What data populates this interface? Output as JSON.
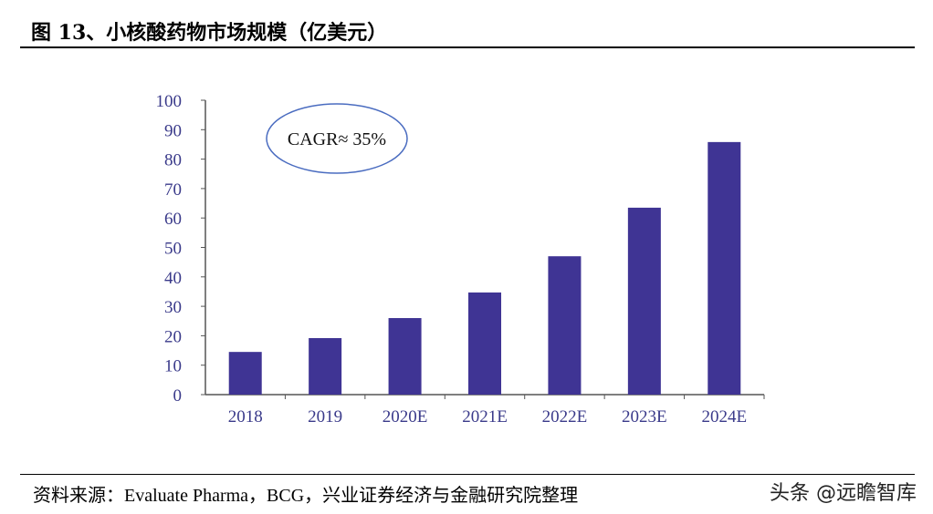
{
  "header": {
    "title": "图 13、小核酸药物市场规模（亿美元）"
  },
  "footer": {
    "source": "资料来源：Evaluate Pharma，BCG，兴业证券经济与金融研究院整理",
    "watermark": "头条 @远瞻智库"
  },
  "chart_data": {
    "type": "bar",
    "title": "",
    "xlabel": "",
    "ylabel": "",
    "categories": [
      "2018",
      "2019",
      "2020E",
      "2021E",
      "2022E",
      "2023E",
      "2024E"
    ],
    "values": [
      14.5,
      19.2,
      26,
      34.7,
      47,
      63.5,
      85.8
    ],
    "ylim": [
      0,
      100
    ],
    "yticks": [
      "0",
      "10",
      "20",
      "30",
      "40",
      "50",
      "60",
      "70",
      "80",
      "90",
      "100"
    ],
    "grid": false,
    "annotation": "CAGR≈ 35%",
    "colors": {
      "bar": "#3f3494",
      "axis_text": "#3a3a8a",
      "ellipse": "#4a6cc0"
    }
  }
}
